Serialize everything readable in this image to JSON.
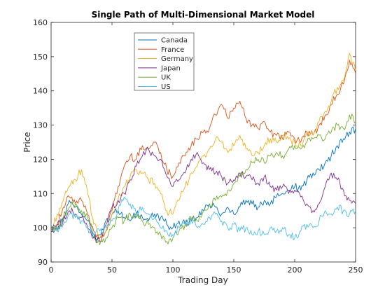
{
  "chart_data": {
    "type": "line",
    "title": "Single Path of Multi-Dimensional Market Model",
    "xlabel": "Trading Day",
    "ylabel": "Price",
    "xlim": [
      0,
      250
    ],
    "ylim": [
      90,
      160
    ],
    "xticks": [
      0,
      50,
      100,
      150,
      200,
      250
    ],
    "yticks": [
      90,
      100,
      110,
      120,
      130,
      140,
      150,
      160
    ],
    "grid": false,
    "legend_position": "top-center",
    "series": [
      {
        "name": "Canada",
        "color": "#0072bd",
        "points": [
          [
            0,
            100
          ],
          [
            5,
            99
          ],
          [
            10,
            103
          ],
          [
            15,
            108
          ],
          [
            20,
            106
          ],
          [
            25,
            104
          ],
          [
            30,
            102
          ],
          [
            35,
            97
          ],
          [
            40,
            98
          ],
          [
            45,
            102
          ],
          [
            50,
            104
          ],
          [
            55,
            105
          ],
          [
            60,
            103
          ],
          [
            65,
            102
          ],
          [
            70,
            104
          ],
          [
            75,
            103
          ],
          [
            80,
            102
          ],
          [
            85,
            104
          ],
          [
            90,
            103
          ],
          [
            95,
            101
          ],
          [
            100,
            100
          ],
          [
            105,
            102
          ],
          [
            110,
            101
          ],
          [
            115,
            102
          ],
          [
            120,
            103
          ],
          [
            125,
            105
          ],
          [
            130,
            107
          ],
          [
            135,
            106
          ],
          [
            140,
            104
          ],
          [
            145,
            106
          ],
          [
            150,
            104
          ],
          [
            155,
            106
          ],
          [
            160,
            108
          ],
          [
            165,
            107
          ],
          [
            170,
            106
          ],
          [
            175,
            108
          ],
          [
            180,
            107
          ],
          [
            185,
            109
          ],
          [
            190,
            110
          ],
          [
            195,
            111
          ],
          [
            200,
            112
          ],
          [
            205,
            111
          ],
          [
            210,
            114
          ],
          [
            215,
            116
          ],
          [
            220,
            117
          ],
          [
            225,
            119
          ],
          [
            230,
            121
          ],
          [
            235,
            124
          ],
          [
            240,
            126
          ],
          [
            245,
            128
          ],
          [
            250,
            129
          ]
        ]
      },
      {
        "name": "France",
        "color": "#d95319",
        "points": [
          [
            0,
            99
          ],
          [
            5,
            101
          ],
          [
            10,
            106
          ],
          [
            15,
            109
          ],
          [
            20,
            107
          ],
          [
            25,
            108
          ],
          [
            30,
            104
          ],
          [
            35,
            99
          ],
          [
            40,
            97
          ],
          [
            45,
            99
          ],
          [
            50,
            105
          ],
          [
            55,
            112
          ],
          [
            60,
            118
          ],
          [
            65,
            121
          ],
          [
            70,
            120
          ],
          [
            75,
            124
          ],
          [
            80,
            123
          ],
          [
            85,
            125
          ],
          [
            90,
            122
          ],
          [
            95,
            117
          ],
          [
            100,
            115
          ],
          [
            105,
            119
          ],
          [
            110,
            121
          ],
          [
            115,
            124
          ],
          [
            120,
            126
          ],
          [
            125,
            128
          ],
          [
            130,
            129
          ],
          [
            135,
            133
          ],
          [
            140,
            136
          ],
          [
            145,
            132
          ],
          [
            150,
            135
          ],
          [
            155,
            137
          ],
          [
            160,
            132
          ],
          [
            165,
            130
          ],
          [
            170,
            129
          ],
          [
            175,
            131
          ],
          [
            180,
            128
          ],
          [
            185,
            127
          ],
          [
            190,
            126
          ],
          [
            195,
            128
          ],
          [
            200,
            126
          ],
          [
            205,
            125
          ],
          [
            210,
            128
          ],
          [
            215,
            127
          ],
          [
            220,
            130
          ],
          [
            225,
            133
          ],
          [
            230,
            136
          ],
          [
            235,
            139
          ],
          [
            240,
            142
          ],
          [
            245,
            149
          ],
          [
            250,
            145
          ]
        ]
      },
      {
        "name": "Germany",
        "color": "#edb120",
        "points": [
          [
            0,
            99
          ],
          [
            5,
            104
          ],
          [
            10,
            108
          ],
          [
            15,
            112
          ],
          [
            20,
            114
          ],
          [
            25,
            117
          ],
          [
            30,
            110
          ],
          [
            35,
            101
          ],
          [
            40,
            97
          ],
          [
            45,
            99
          ],
          [
            50,
            104
          ],
          [
            55,
            108
          ],
          [
            60,
            112
          ],
          [
            65,
            115
          ],
          [
            70,
            117
          ],
          [
            75,
            116
          ],
          [
            80,
            114
          ],
          [
            85,
            113
          ],
          [
            90,
            110
          ],
          [
            95,
            105
          ],
          [
            100,
            104
          ],
          [
            105,
            108
          ],
          [
            110,
            112
          ],
          [
            115,
            116
          ],
          [
            120,
            118
          ],
          [
            125,
            121
          ],
          [
            130,
            123
          ],
          [
            135,
            126
          ],
          [
            140,
            125
          ],
          [
            145,
            122
          ],
          [
            150,
            124
          ],
          [
            155,
            127
          ],
          [
            160,
            123
          ],
          [
            165,
            121
          ],
          [
            170,
            122
          ],
          [
            175,
            124
          ],
          [
            180,
            126
          ],
          [
            185,
            125
          ],
          [
            190,
            127
          ],
          [
            195,
            126
          ],
          [
            200,
            125
          ],
          [
            205,
            124
          ],
          [
            210,
            128
          ],
          [
            215,
            127
          ],
          [
            220,
            131
          ],
          [
            225,
            134
          ],
          [
            230,
            137
          ],
          [
            235,
            141
          ],
          [
            240,
            143
          ],
          [
            245,
            151
          ],
          [
            250,
            146
          ]
        ]
      },
      {
        "name": "Japan",
        "color": "#7e2f8e",
        "points": [
          [
            0,
            99
          ],
          [
            5,
            101
          ],
          [
            10,
            102
          ],
          [
            15,
            105
          ],
          [
            20,
            104
          ],
          [
            25,
            103
          ],
          [
            30,
            100
          ],
          [
            35,
            97
          ],
          [
            40,
            96
          ],
          [
            45,
            101
          ],
          [
            50,
            106
          ],
          [
            55,
            108
          ],
          [
            60,
            110
          ],
          [
            65,
            114
          ],
          [
            70,
            118
          ],
          [
            75,
            121
          ],
          [
            80,
            123
          ],
          [
            85,
            121
          ],
          [
            90,
            120
          ],
          [
            95,
            115
          ],
          [
            100,
            112
          ],
          [
            105,
            114
          ],
          [
            110,
            116
          ],
          [
            115,
            120
          ],
          [
            120,
            122
          ],
          [
            125,
            119
          ],
          [
            130,
            117
          ],
          [
            135,
            116
          ],
          [
            140,
            115
          ],
          [
            145,
            113
          ],
          [
            150,
            114
          ],
          [
            155,
            116
          ],
          [
            160,
            115
          ],
          [
            165,
            114
          ],
          [
            170,
            113
          ],
          [
            175,
            115
          ],
          [
            180,
            112
          ],
          [
            185,
            111
          ],
          [
            190,
            112
          ],
          [
            195,
            110
          ],
          [
            200,
            111
          ],
          [
            205,
            109
          ],
          [
            210,
            107
          ],
          [
            215,
            105
          ],
          [
            220,
            107
          ],
          [
            225,
            112
          ],
          [
            230,
            116
          ],
          [
            235,
            114
          ],
          [
            240,
            111
          ],
          [
            245,
            108
          ],
          [
            250,
            107
          ]
        ]
      },
      {
        "name": "UK",
        "color": "#77ac30",
        "points": [
          [
            0,
            99
          ],
          [
            5,
            100
          ],
          [
            10,
            103
          ],
          [
            15,
            106
          ],
          [
            20,
            107
          ],
          [
            25,
            105
          ],
          [
            30,
            103
          ],
          [
            35,
            98
          ],
          [
            40,
            95
          ],
          [
            45,
            97
          ],
          [
            50,
            100
          ],
          [
            55,
            103
          ],
          [
            60,
            102
          ],
          [
            65,
            104
          ],
          [
            70,
            103
          ],
          [
            75,
            102
          ],
          [
            80,
            101
          ],
          [
            85,
            100
          ],
          [
            90,
            98
          ],
          [
            95,
            96
          ],
          [
            100,
            97
          ],
          [
            105,
            99
          ],
          [
            110,
            101
          ],
          [
            115,
            103
          ],
          [
            120,
            102
          ],
          [
            125,
            105
          ],
          [
            130,
            107
          ],
          [
            135,
            108
          ],
          [
            140,
            109
          ],
          [
            145,
            111
          ],
          [
            150,
            113
          ],
          [
            155,
            115
          ],
          [
            160,
            117
          ],
          [
            165,
            119
          ],
          [
            170,
            120
          ],
          [
            175,
            119
          ],
          [
            180,
            121
          ],
          [
            185,
            122
          ],
          [
            190,
            121
          ],
          [
            195,
            123
          ],
          [
            200,
            124
          ],
          [
            205,
            123
          ],
          [
            210,
            125
          ],
          [
            215,
            126
          ],
          [
            220,
            127
          ],
          [
            225,
            126
          ],
          [
            230,
            128
          ],
          [
            235,
            130
          ],
          [
            240,
            129
          ],
          [
            245,
            133
          ],
          [
            250,
            131
          ]
        ]
      },
      {
        "name": "US",
        "color": "#4dbeee",
        "points": [
          [
            0,
            100
          ],
          [
            5,
            99
          ],
          [
            10,
            101
          ],
          [
            15,
            104
          ],
          [
            20,
            103
          ],
          [
            25,
            102
          ],
          [
            30,
            100
          ],
          [
            35,
            98
          ],
          [
            40,
            99
          ],
          [
            45,
            100
          ],
          [
            50,
            102
          ],
          [
            55,
            105
          ],
          [
            60,
            109
          ],
          [
            65,
            107
          ],
          [
            70,
            104
          ],
          [
            75,
            106
          ],
          [
            80,
            104
          ],
          [
            85,
            103
          ],
          [
            90,
            100
          ],
          [
            95,
            99
          ],
          [
            100,
            98
          ],
          [
            105,
            100
          ],
          [
            110,
            101
          ],
          [
            115,
            102
          ],
          [
            120,
            100
          ],
          [
            125,
            101
          ],
          [
            130,
            103
          ],
          [
            135,
            104
          ],
          [
            140,
            102
          ],
          [
            145,
            100
          ],
          [
            150,
            101
          ],
          [
            155,
            99
          ],
          [
            160,
            100
          ],
          [
            165,
            98
          ],
          [
            170,
            99
          ],
          [
            175,
            98
          ],
          [
            180,
            100
          ],
          [
            185,
            99
          ],
          [
            190,
            100
          ],
          [
            195,
            98
          ],
          [
            200,
            97
          ],
          [
            205,
            99
          ],
          [
            210,
            101
          ],
          [
            215,
            100
          ],
          [
            220,
            102
          ],
          [
            225,
            105
          ],
          [
            230,
            104
          ],
          [
            235,
            106
          ],
          [
            240,
            105
          ],
          [
            245,
            104
          ],
          [
            250,
            105
          ]
        ]
      }
    ]
  }
}
